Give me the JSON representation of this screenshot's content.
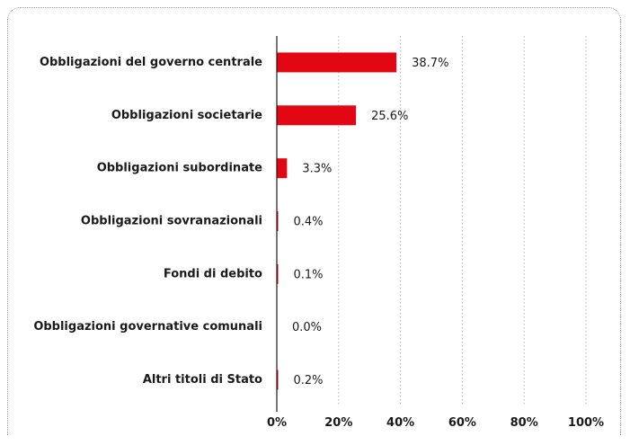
{
  "chart_data": {
    "type": "bar",
    "orientation": "horizontal",
    "categories": [
      "Obbligazioni del governo centrale",
      "Obbligazioni societarie",
      "Obbligazioni subordinate",
      "Obbligazioni sovranazionali",
      "Fondi di debito",
      "Obbligazioni governative comunali",
      "Altri titoli di Stato"
    ],
    "values": [
      38.7,
      25.6,
      3.3,
      0.4,
      0.1,
      0.0,
      0.2
    ],
    "value_labels": [
      "38.7%",
      "25.6%",
      "3.3%",
      "0.4%",
      "0.1%",
      "0.0%",
      "0.2%"
    ],
    "x_ticks": [
      "0%",
      "20%",
      "40%",
      "60%",
      "80%",
      "100%"
    ],
    "xlim": [
      0,
      100
    ],
    "grid": "vertical dotted",
    "bar_color": "#e30613",
    "title": "",
    "xlabel": "",
    "ylabel": ""
  }
}
